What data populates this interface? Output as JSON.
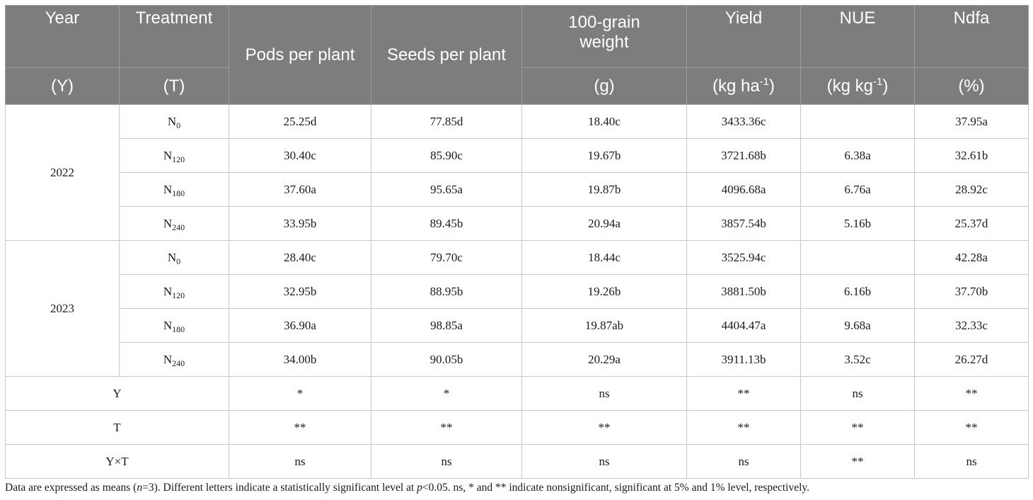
{
  "header": {
    "year": "Year",
    "year_sub": "(Y)",
    "treatment": "Treatment",
    "treatment_sub": "(T)",
    "pods": "Pods per plant",
    "seeds": "Seeds per plant",
    "grain_line1": "100-grain",
    "grain_line2": "weight",
    "grain_unit": "(g)",
    "yield": "Yield",
    "yield_unit_pre": "(kg ha",
    "yield_unit_sup": "-1",
    "yield_unit_post": ")",
    "nue": "NUE",
    "nue_unit_pre": "(kg kg",
    "nue_unit_sup": "-1",
    "nue_unit_post": ")",
    "ndfa": "Ndfa",
    "ndfa_unit": "(%)"
  },
  "groups": [
    {
      "year": "2022",
      "rows": [
        {
          "n": "N",
          "sub": "0",
          "pods": "25.25d",
          "seeds": "77.85d",
          "grain": "18.40c",
          "yield": "3433.36c",
          "nue": "",
          "ndfa": "37.95a"
        },
        {
          "n": "N",
          "sub": "120",
          "pods": "30.40c",
          "seeds": "85.90c",
          "grain": "19.67b",
          "yield": "3721.68b",
          "nue": "6.38a",
          "ndfa": "32.61b"
        },
        {
          "n": "N",
          "sub": "180",
          "pods": "37.60a",
          "seeds": "95.65a",
          "grain": "19.87b",
          "yield": "4096.68a",
          "nue": "6.76a",
          "ndfa": "28.92c"
        },
        {
          "n": "N",
          "sub": "240",
          "pods": "33.95b",
          "seeds": "89.45b",
          "grain": "20.94a",
          "yield": "3857.54b",
          "nue": "5.16b",
          "ndfa": "25.37d"
        }
      ]
    },
    {
      "year": "2023",
      "rows": [
        {
          "n": "N",
          "sub": "0",
          "pods": "28.40c",
          "seeds": "79.70c",
          "grain": "18.44c",
          "yield": "3525.94c",
          "nue": "",
          "ndfa": "42.28a"
        },
        {
          "n": "N",
          "sub": "120",
          "pods": "32.95b",
          "seeds": "88.95b",
          "grain": "19.26b",
          "yield": "3881.50b",
          "nue": "6.16b",
          "ndfa": "37.70b"
        },
        {
          "n": "N",
          "sub": "180",
          "pods": "36.90a",
          "seeds": "98.85a",
          "grain": "19.87ab",
          "yield": "4404.47a",
          "nue": "9.68a",
          "ndfa": "32.33c"
        },
        {
          "n": "N",
          "sub": "240",
          "pods": "34.00b",
          "seeds": "90.05b",
          "grain": "20.29a",
          "yield": "3911.13b",
          "nue": "3.52c",
          "ndfa": "26.27d"
        }
      ]
    }
  ],
  "significance": [
    {
      "label": "Y",
      "pods": "*",
      "seeds": "*",
      "grain": "ns",
      "yield": "**",
      "nue": "ns",
      "ndfa": "**"
    },
    {
      "label": "T",
      "pods": "**",
      "seeds": "**",
      "grain": "**",
      "yield": "**",
      "nue": "**",
      "ndfa": "**"
    },
    {
      "label": "Y×T",
      "pods": "ns",
      "seeds": "ns",
      "grain": "ns",
      "yield": "ns",
      "nue": "**",
      "ndfa": "ns"
    }
  ],
  "footnote": {
    "p1": "Data are expressed as means (",
    "n_var": "n",
    "p2": "=3). Different letters indicate a statistically significant level at ",
    "p_var": "p",
    "p3": "<0.05. ns, * and ** indicate nonsignificant, significant at 5% and 1% level, respectively."
  },
  "colors": {
    "header_bg": "#7b7d7e",
    "header_text": "#ffffff",
    "grid": "#c8c8c8"
  }
}
